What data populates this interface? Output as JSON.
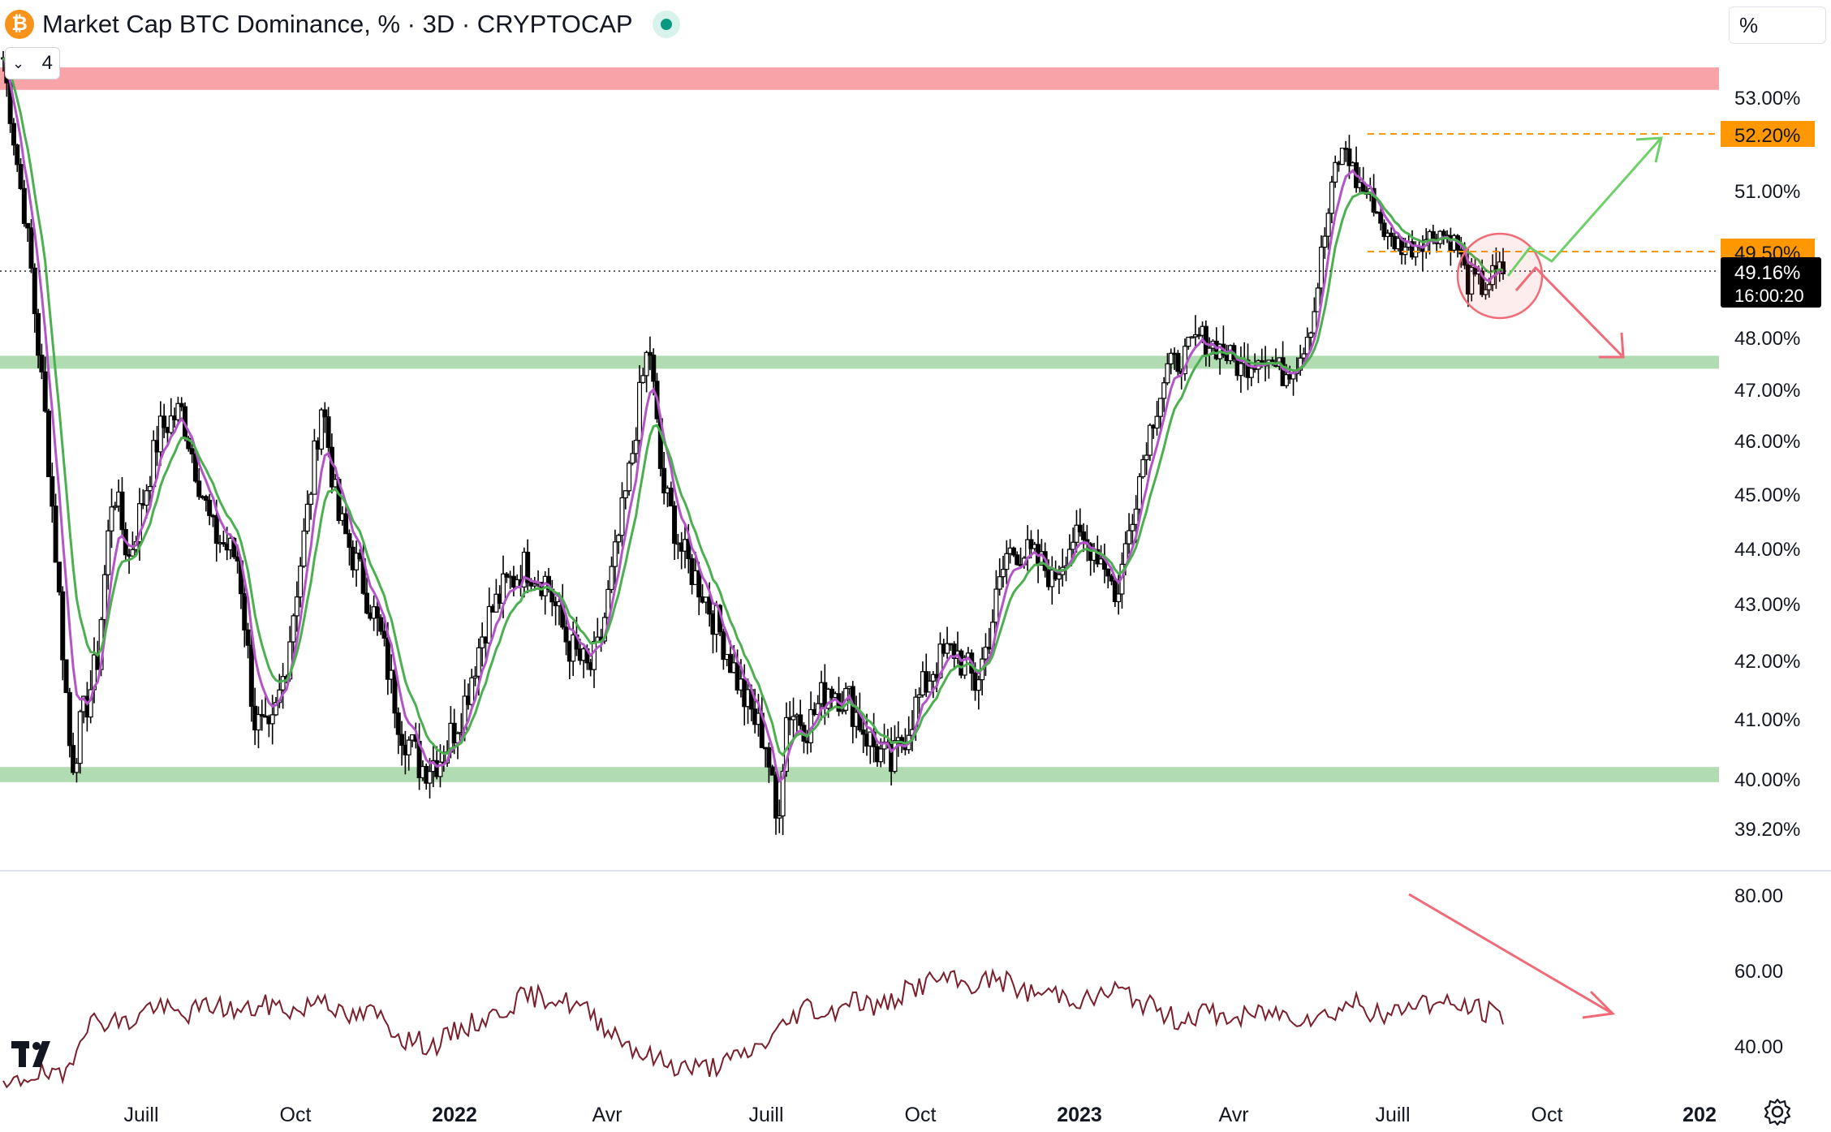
{
  "header": {
    "title": "Market Cap BTC Dominance, % · 3D · CRYPTOCAP",
    "symbol_icon": "bitcoin-icon",
    "status_icon": "green-dot-icon",
    "collapse_count": "4",
    "scale_mode": "%"
  },
  "colors": {
    "candle": "#000000",
    "ema_fast": "#b355c8",
    "ema_slow": "#4caf50",
    "resistance_zone": "#f7a3a8",
    "support_zone": "#b1dbb0",
    "rsi_line": "#7a1f2b",
    "arrow_up": "#6fcf6a",
    "arrow_down": "#ef6b78",
    "price_tag_orange": "#ff9800",
    "current_tag": "#000000"
  },
  "chart_data": [
    {
      "type": "candlestick",
      "title": "Market Cap BTC Dominance, % · 3D · CRYPTOCAP",
      "x_ticks": [
        "Juill",
        "Oct",
        "2022",
        "Avr",
        "Juill",
        "Oct",
        "2023",
        "Avr",
        "Juill",
        "Oct",
        "202"
      ],
      "y_ticks": [
        "53.00%",
        "51.00%",
        "48.00%",
        "47.00%",
        "46.00%",
        "45.00%",
        "44.00%",
        "43.00%",
        "42.00%",
        "41.00%",
        "40.00%",
        "39.20%"
      ],
      "y_range": [
        38.8,
        54.3
      ],
      "price_path": [
        [
          0.0,
          53.8
        ],
        [
          0.02,
          50.5
        ],
        [
          0.04,
          46.5
        ],
        [
          0.065,
          40.2
        ],
        [
          0.09,
          42.0
        ],
        [
          0.105,
          45.2
        ],
        [
          0.12,
          43.8
        ],
        [
          0.15,
          46.2
        ],
        [
          0.17,
          46.6
        ],
        [
          0.2,
          44.3
        ],
        [
          0.225,
          43.8
        ],
        [
          0.24,
          41.0
        ],
        [
          0.255,
          40.6
        ],
        [
          0.27,
          41.9
        ],
        [
          0.29,
          44.5
        ],
        [
          0.305,
          46.8
        ],
        [
          0.32,
          44.6
        ],
        [
          0.34,
          43.6
        ],
        [
          0.36,
          42.5
        ],
        [
          0.38,
          40.9
        ],
        [
          0.4,
          40.2
        ],
        [
          0.42,
          40.4
        ],
        [
          0.44,
          41.2
        ],
        [
          0.46,
          42.6
        ],
        [
          0.48,
          43.3
        ],
        [
          0.5,
          43.7
        ],
        [
          0.52,
          43.4
        ],
        [
          0.54,
          42.3
        ],
        [
          0.56,
          41.8
        ],
        [
          0.57,
          42.2
        ],
        [
          0.585,
          43.8
        ],
        [
          0.6,
          45.5
        ],
        [
          0.61,
          47.0
        ],
        [
          0.618,
          47.9
        ],
        [
          0.63,
          45.2
        ],
        [
          0.65,
          43.9
        ],
        [
          0.67,
          43.2
        ],
        [
          0.69,
          42.3
        ],
        [
          0.71,
          41.3
        ],
        [
          0.73,
          40.6
        ],
        [
          0.74,
          39.2
        ],
        [
          0.75,
          41.2
        ],
        [
          0.77,
          40.9
        ],
        [
          0.79,
          41.6
        ],
        [
          0.81,
          41.3
        ],
        [
          0.83,
          40.6
        ],
        [
          0.85,
          40.2
        ],
        [
          0.87,
          41.1
        ],
        [
          0.89,
          41.9
        ],
        [
          0.91,
          42.2
        ],
        [
          0.93,
          41.6
        ],
        [
          0.94,
          42.2
        ],
        [
          0.96,
          43.9
        ],
        [
          0.97,
          44.0
        ],
        [
          1.0,
          43.6
        ]
      ],
      "price_path_2": [
        [
          0.0,
          43.4
        ],
        [
          0.02,
          44.2
        ],
        [
          0.04,
          44.0
        ],
        [
          0.055,
          43.6
        ],
        [
          0.06,
          43.0
        ],
        [
          0.075,
          44.5
        ],
        [
          0.09,
          46.0
        ],
        [
          0.11,
          47.4
        ],
        [
          0.125,
          47.6
        ],
        [
          0.14,
          48.0
        ],
        [
          0.16,
          47.8
        ],
        [
          0.18,
          47.4
        ],
        [
          0.2,
          47.7
        ],
        [
          0.22,
          47.3
        ],
        [
          0.235,
          47.6
        ],
        [
          0.25,
          48.5
        ],
        [
          0.26,
          49.9
        ],
        [
          0.27,
          51.5
        ],
        [
          0.28,
          51.9
        ],
        [
          0.29,
          51.2
        ],
        [
          0.305,
          50.8
        ],
        [
          0.32,
          49.8
        ],
        [
          0.34,
          49.6
        ],
        [
          0.355,
          49.8
        ],
        [
          0.37,
          50.0
        ],
        [
          0.385,
          49.7
        ],
        [
          0.395,
          49.0
        ],
        [
          0.41,
          48.9
        ],
        [
          0.43,
          49.16
        ]
      ],
      "series": [
        {
          "name": "",
          "kind": "ema_fast"
        },
        {
          "name": "",
          "kind": "ema_slow"
        }
      ],
      "zones": [
        {
          "kind": "resistance",
          "from": 53.15,
          "to": 53.6
        },
        {
          "kind": "support",
          "from": 47.4,
          "to": 47.65
        },
        {
          "kind": "support",
          "from": 39.95,
          "to": 40.2
        }
      ],
      "price_tags": [
        {
          "value": "52.20%",
          "level": 52.2,
          "style": "orange"
        },
        {
          "value": "49.50%",
          "level": 49.5,
          "style": "orange"
        },
        {
          "value": "49.16%",
          "level": 49.16,
          "style": "current",
          "countdown": "16:00:20"
        }
      ]
    },
    {
      "type": "line",
      "title": "",
      "y_ticks": [
        "80.00",
        "60.00",
        "40.00"
      ],
      "y_range": [
        28,
        86
      ],
      "rsi_path": [
        [
          0.0,
          28
        ],
        [
          0.02,
          33
        ],
        [
          0.04,
          31
        ],
        [
          0.055,
          46
        ],
        [
          0.07,
          47
        ],
        [
          0.085,
          46
        ],
        [
          0.1,
          51
        ],
        [
          0.12,
          48
        ],
        [
          0.14,
          51
        ],
        [
          0.16,
          49
        ],
        [
          0.18,
          51
        ],
        [
          0.2,
          49
        ],
        [
          0.215,
          54
        ],
        [
          0.23,
          47
        ],
        [
          0.25,
          49
        ],
        [
          0.27,
          42
        ],
        [
          0.29,
          40
        ],
        [
          0.31,
          45
        ],
        [
          0.33,
          48
        ],
        [
          0.35,
          53
        ],
        [
          0.37,
          53
        ],
        [
          0.39,
          50
        ],
        [
          0.41,
          44
        ],
        [
          0.43,
          38
        ],
        [
          0.45,
          35
        ],
        [
          0.47,
          34
        ],
        [
          0.49,
          36
        ],
        [
          0.51,
          40
        ],
        [
          0.525,
          45
        ],
        [
          0.54,
          51
        ],
        [
          0.555,
          48
        ],
        [
          0.57,
          53
        ],
        [
          0.59,
          50
        ],
        [
          0.61,
          55
        ],
        [
          0.63,
          58
        ],
        [
          0.65,
          56
        ],
        [
          0.67,
          58
        ],
        [
          0.69,
          54
        ],
        [
          0.71,
          54
        ],
        [
          0.73,
          52
        ],
        [
          0.75,
          55
        ],
        [
          0.77,
          51
        ],
        [
          0.79,
          47
        ],
        [
          0.81,
          49
        ],
        [
          0.83,
          47
        ],
        [
          0.85,
          49
        ],
        [
          0.87,
          48
        ],
        [
          0.89,
          48
        ],
        [
          0.91,
          52
        ],
        [
          0.93,
          47
        ],
        [
          0.95,
          52
        ],
        [
          0.97,
          51
        ],
        [
          0.99,
          50
        ],
        [
          1.01,
          48
        ]
      ]
    }
  ]
}
